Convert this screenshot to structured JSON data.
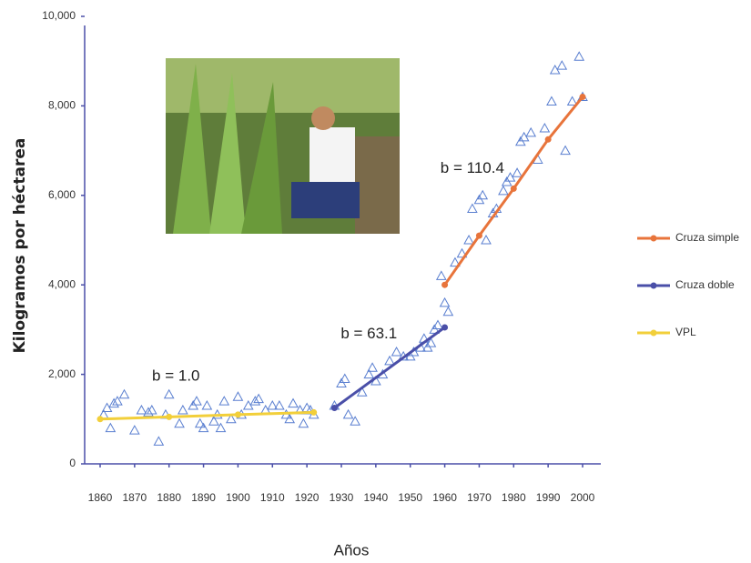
{
  "chart_data": {
    "type": "scatter",
    "y_label": "Kilogramos por héctarea",
    "x_label": "Años",
    "xlim": [
      1855,
      2007
    ],
    "ylim": [
      0,
      10000
    ],
    "xticks": [
      1860,
      1870,
      1880,
      1890,
      1900,
      1910,
      1920,
      1930,
      1940,
      1950,
      1960,
      1970,
      1980,
      1990,
      2000
    ],
    "yticks": [
      0,
      {
        "value": 2000,
        "label": "2,000"
      },
      {
        "value": 4000,
        "label": "4,000"
      },
      {
        "value": 6000,
        "label": "6,000"
      },
      {
        "value": 8000,
        "label": "8,000"
      },
      {
        "value": 10000,
        "label": "10,000"
      }
    ],
    "grid": false,
    "legend": "right",
    "points": {
      "color": "#5a7fd0",
      "x": [
        1861,
        1862,
        1863,
        1864,
        1865,
        1867,
        1870,
        1872,
        1874,
        1875,
        1877,
        1879,
        1880,
        1883,
        1884,
        1887,
        1888,
        1889,
        1890,
        1891,
        1893,
        1894,
        1895,
        1896,
        1898,
        1900,
        1901,
        1903,
        1905,
        1906,
        1908,
        1910,
        1912,
        1914,
        1915,
        1916,
        1918,
        1919,
        1920,
        1921,
        1922,
        1928,
        1930,
        1931,
        1932,
        1934,
        1936,
        1938,
        1939,
        1940,
        1942,
        1944,
        1946,
        1948,
        1950,
        1951,
        1953,
        1954,
        1955,
        1956,
        1957,
        1958,
        1959,
        1960,
        1961,
        1963,
        1965,
        1967,
        1968,
        1970,
        1971,
        1972,
        1974,
        1975,
        1977,
        1978,
        1979,
        1981,
        1982,
        1983,
        1985,
        1987,
        1989,
        1991,
        1992,
        1994,
        1995,
        1997,
        1999,
        2000
      ],
      "values": [
        1100,
        1250,
        800,
        1350,
        1400,
        1550,
        750,
        1200,
        1150,
        1200,
        500,
        1100,
        1550,
        900,
        1200,
        1300,
        1400,
        900,
        800,
        1300,
        950,
        1100,
        800,
        1400,
        1000,
        1500,
        1100,
        1300,
        1400,
        1450,
        1200,
        1300,
        1300,
        1100,
        1000,
        1350,
        1200,
        900,
        1250,
        1200,
        1100,
        1300,
        1800,
        1900,
        1100,
        950,
        1600,
        2000,
        2150,
        1850,
        2000,
        2300,
        2500,
        2400,
        2400,
        2500,
        2600,
        2800,
        2600,
        2700,
        3000,
        3100,
        4200,
        3600,
        3400,
        4500,
        4700,
        5000,
        5700,
        5900,
        6000,
        5000,
        5600,
        5700,
        6100,
        6300,
        6400,
        6500,
        7200,
        7300,
        7400,
        6800,
        7500,
        8100,
        8800,
        8900,
        7000,
        8100,
        9100,
        8200
      ]
    },
    "series": [
      {
        "name": "Cruza simple",
        "color": "#e8743b",
        "x": [
          1960,
          1970,
          1980,
          1990,
          2000
        ],
        "values": [
          4000,
          5100,
          6150,
          7250,
          8200
        ]
      },
      {
        "name": "Cruza doble",
        "color": "#4a4fa8",
        "x": [
          1928,
          1960
        ],
        "values": [
          1250,
          3050
        ]
      },
      {
        "name": "VPL",
        "color": "#f2cf3a",
        "x": [
          1860,
          1880,
          1900,
          1922
        ],
        "values": [
          1000,
          1050,
          1100,
          1150
        ]
      }
    ],
    "annotations": [
      {
        "text": "b = 1.0",
        "x": 1882,
        "y": 1950
      },
      {
        "text": "b = 63.1",
        "x": 1938,
        "y": 2900
      },
      {
        "text": "b = 110.4",
        "x": 1968,
        "y": 6600
      }
    ]
  }
}
